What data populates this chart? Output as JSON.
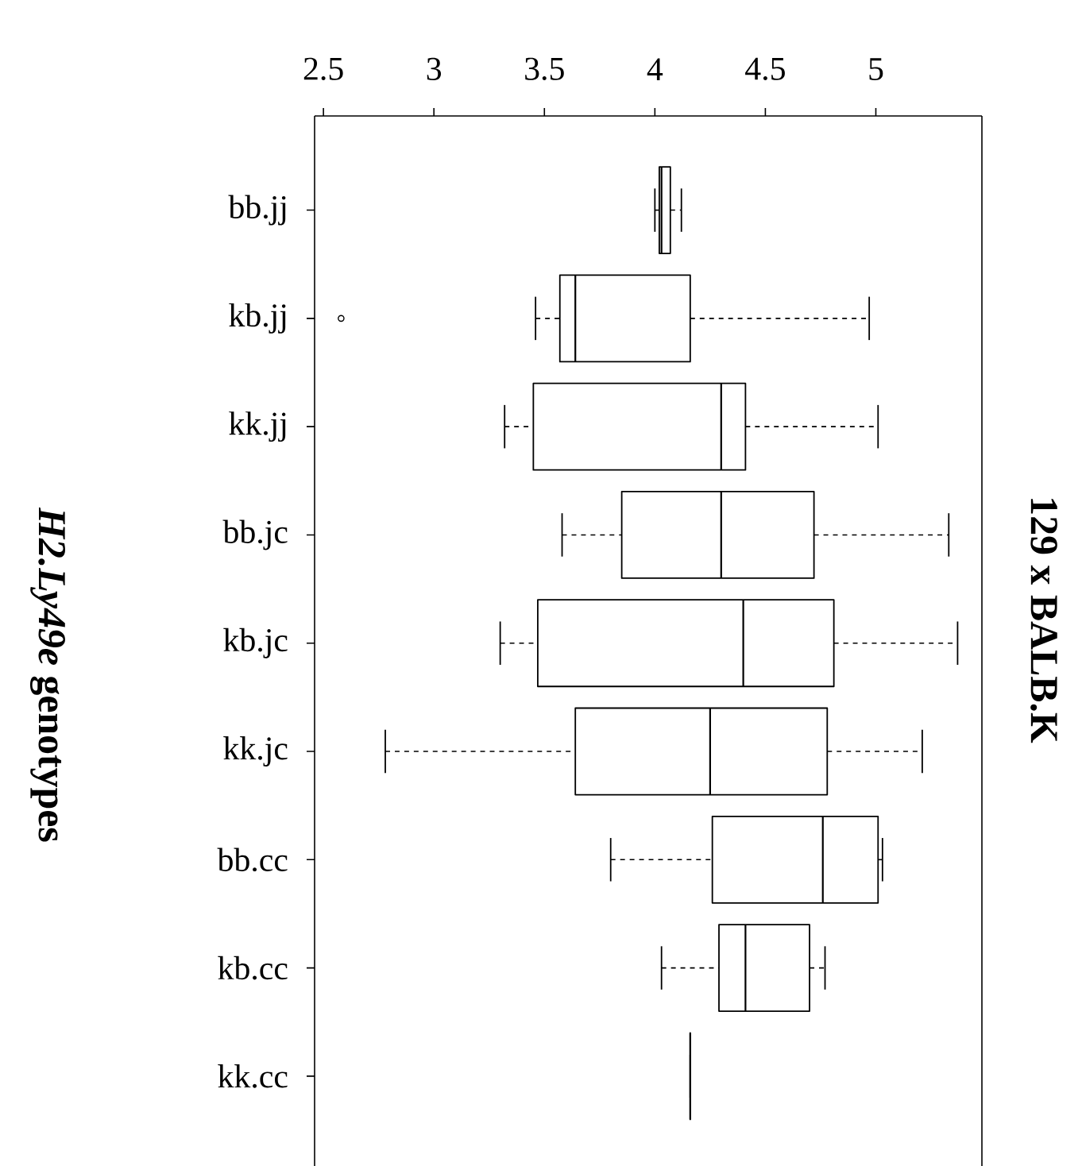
{
  "chart_data": {
    "type": "box",
    "orientation": "horizontal",
    "title": "129 x BALB.K",
    "ylabel": "*H2.Ly49e* genotypes",
    "categories": [
      "bb.jj",
      "kb.jj",
      "kk.jj",
      "bb.jc",
      "kb.jc",
      "kk.jc",
      "bb.cc",
      "kb.cc",
      "kk.cc"
    ],
    "boxes": [
      {
        "low": 4.0,
        "q1": 4.02,
        "median": 4.03,
        "q3": 4.07,
        "high": 4.12
      },
      {
        "low": 3.46,
        "q1": 3.57,
        "median": 3.64,
        "q3": 4.16,
        "high": 4.97,
        "outliers": [
          2.58
        ]
      },
      {
        "low": 3.32,
        "q1": 3.45,
        "median": 4.3,
        "q3": 4.41,
        "high": 5.01
      },
      {
        "low": 3.58,
        "q1": 3.85,
        "median": 4.3,
        "q3": 4.72,
        "high": 5.33
      },
      {
        "low": 3.3,
        "q1": 3.47,
        "median": 4.4,
        "q3": 4.81,
        "high": 5.37
      },
      {
        "low": 2.78,
        "q1": 3.64,
        "median": 4.25,
        "q3": 4.78,
        "high": 5.21
      },
      {
        "low": 3.8,
        "q1": 4.26,
        "median": 4.76,
        "q3": 5.01,
        "high": 5.03
      },
      {
        "low": 4.03,
        "q1": 4.29,
        "median": 4.41,
        "q3": 4.7,
        "high": 4.77
      },
      {
        "low": 4.16,
        "q1": 4.16,
        "median": 4.16,
        "q3": 4.16,
        "high": 4.16
      }
    ],
    "xlim": [
      2.46,
      5.48
    ],
    "xticks": [
      2.5,
      3,
      3.5,
      4,
      4.5,
      5
    ]
  }
}
